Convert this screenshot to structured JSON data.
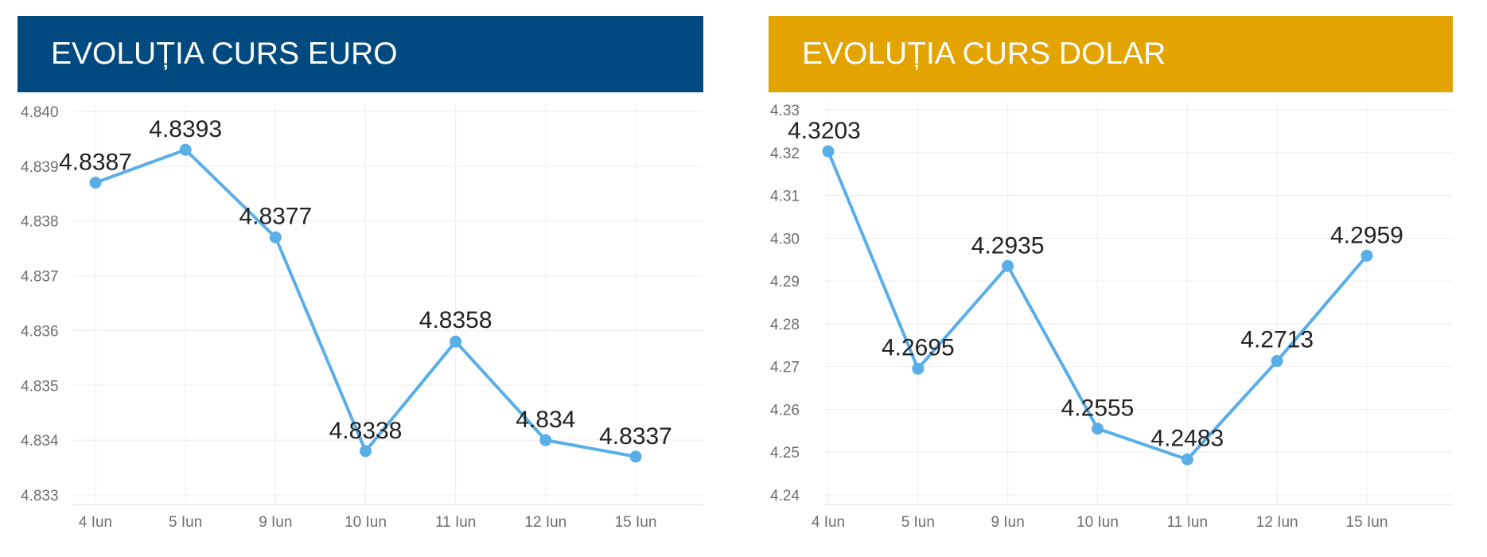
{
  "colors": {
    "euro_header": "#004a7f",
    "dolar_header": "#e3a300",
    "line": "#5aaee8",
    "grid": "#eeeeee"
  },
  "chart_data": [
    {
      "type": "line",
      "title": "EVOLUȚIA CURS EURO",
      "categories": [
        "4 Iun",
        "5 Iun",
        "9 Iun",
        "10 Iun",
        "11 Iun",
        "12 Iun",
        "15 Iun"
      ],
      "values": [
        4.8387,
        4.8393,
        4.8377,
        4.8338,
        4.8358,
        4.834,
        4.8337
      ],
      "data_labels": [
        "4.8387",
        "4.8393",
        "4.8377",
        "4.8338",
        "4.8358",
        "4.834",
        "4.8337"
      ],
      "y_ticks": [
        "4.833",
        "4.834",
        "4.835",
        "4.836",
        "4.837",
        "4.838",
        "4.839",
        "4.840"
      ],
      "ylim": [
        4.833,
        4.84
      ],
      "grid": true,
      "legend": "none"
    },
    {
      "type": "line",
      "title": "EVOLUȚIA CURS DOLAR",
      "categories": [
        "4 Iun",
        "5 Iun",
        "9 Iun",
        "10 Iun",
        "11 Iun",
        "12 Iun",
        "15 Iun"
      ],
      "values": [
        4.3203,
        4.2695,
        4.2935,
        4.2555,
        4.2483,
        4.2713,
        4.2959
      ],
      "data_labels": [
        "4.3203",
        "4.2695",
        "4.2935",
        "4.2555",
        "4.2483",
        "4.2713",
        "4.2959"
      ],
      "y_ticks": [
        "4.24",
        "4.25",
        "4.26",
        "4.27",
        "4.28",
        "4.29",
        "4.30",
        "4.31",
        "4.32",
        "4.33"
      ],
      "ylim": [
        4.24,
        4.33
      ],
      "grid": true,
      "legend": "none"
    }
  ]
}
